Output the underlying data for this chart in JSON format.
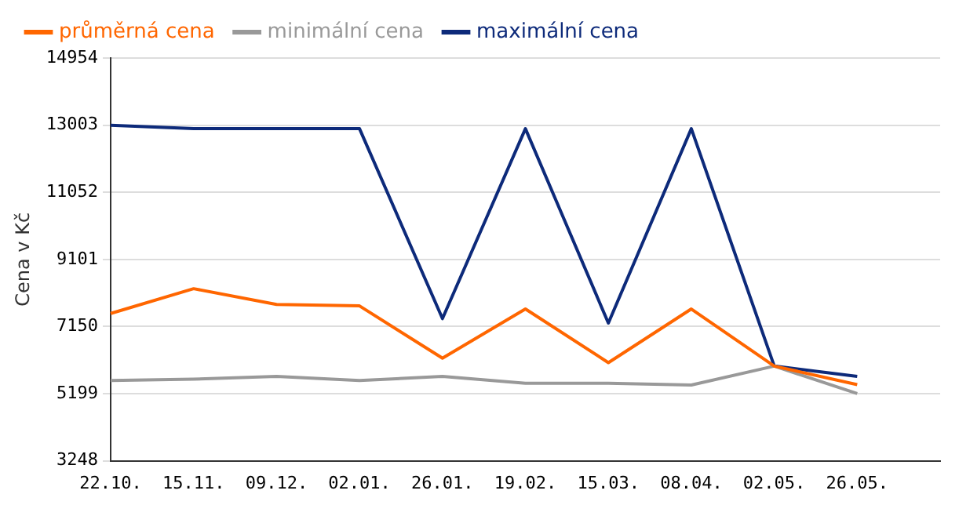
{
  "chart_data": {
    "type": "line",
    "ylabel": "Cena v Kč",
    "categories": [
      "22.10.",
      "15.11.",
      "09.12.",
      "02.01.",
      "26.01.",
      "19.02.",
      "15.03.",
      "08.04.",
      "02.05.",
      "26.05.",
      null
    ],
    "series": [
      {
        "name": "průměrná cena",
        "color": "#ff6600",
        "values": [
          7530,
          8250,
          7790,
          7750,
          6230,
          7660,
          6100,
          7660,
          6000,
          5460,
          null
        ]
      },
      {
        "name": "minimální cena",
        "color": "#999999",
        "values": [
          5580,
          5620,
          5700,
          5580,
          5700,
          5500,
          5500,
          5450,
          6000,
          5200,
          null
        ]
      },
      {
        "name": "maximální cena",
        "color": "#0d2a7a",
        "values": [
          13000,
          12900,
          12900,
          12900,
          7380,
          12900,
          7250,
          12900,
          6000,
          5700,
          null
        ]
      }
    ],
    "ylim": [
      3248,
      14954
    ],
    "yticks": [
      3248,
      5199,
      7150,
      9101,
      11052,
      13003,
      14954
    ],
    "grid": "y",
    "legend": "top left",
    "marker": "none",
    "line_style": "solid"
  }
}
